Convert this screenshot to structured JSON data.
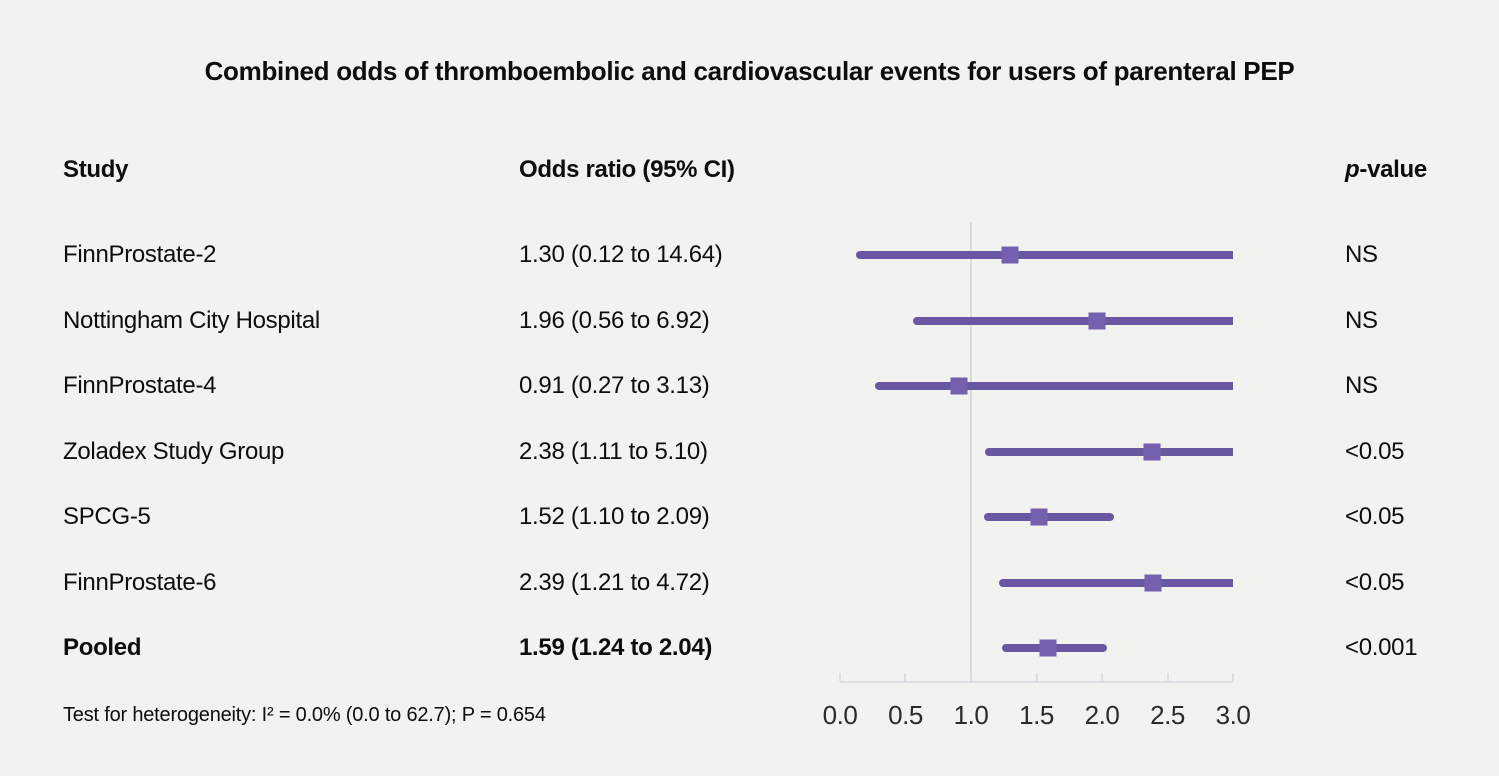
{
  "title": "Combined odds of thromboembolic and cardiovascular events for users of parenteral PEP",
  "columns": {
    "study": "Study",
    "odds_ratio": "Odds ratio (95% CI)",
    "p_prefix": "p",
    "p_suffix": "-value"
  },
  "footer": "Test for heterogeneity: I² = 0.0% (0.0 to 62.7); P = 0.654",
  "colors": {
    "background": "#f2f2f1",
    "ci_line": "#6a57a2",
    "marker": "#7460ae",
    "reference_line": "#d8dade",
    "axis": "#dcdee2",
    "text": "#0d0d0d"
  },
  "chart_data": {
    "type": "forest",
    "title": "Combined odds of thromboembolic and cardiovascular events for users of parenteral PEP",
    "xlabel": "",
    "ylabel": "",
    "axis": {
      "min": 0.0,
      "max": 3.0,
      "ticks": [
        0.0,
        0.5,
        1.0,
        1.5,
        2.0,
        2.5,
        3.0
      ],
      "tick_labels": [
        "0.0",
        "0.5",
        "1.0",
        "1.5",
        "2.0",
        "2.5",
        "3.0"
      ],
      "reference_line": 1.0,
      "grid": false
    },
    "rows": [
      {
        "study": "FinnProstate-2",
        "or_label": "1.30 (0.12 to 14.64)",
        "or": 1.3,
        "ci_low": 0.12,
        "ci_high": 14.64,
        "p": "NS",
        "emphasis": false
      },
      {
        "study": "Nottingham City Hospital",
        "or_label": "1.96 (0.56 to 6.92)",
        "or": 1.96,
        "ci_low": 0.56,
        "ci_high": 6.92,
        "p": "NS",
        "emphasis": false
      },
      {
        "study": "FinnProstate-4",
        "or_label": "0.91 (0.27 to 3.13)",
        "or": 0.91,
        "ci_low": 0.27,
        "ci_high": 3.13,
        "p": "NS",
        "emphasis": false
      },
      {
        "study": "Zoladex Study Group",
        "or_label": "2.38 (1.11 to 5.10)",
        "or": 2.38,
        "ci_low": 1.11,
        "ci_high": 5.1,
        "p": "<0.05",
        "emphasis": false
      },
      {
        "study": "SPCG-5",
        "or_label": "1.52 (1.10 to 2.09)",
        "or": 1.52,
        "ci_low": 1.1,
        "ci_high": 2.09,
        "p": "<0.05",
        "emphasis": false
      },
      {
        "study": "FinnProstate-6",
        "or_label": "2.39 (1.21 to 4.72)",
        "or": 2.39,
        "ci_low": 1.21,
        "ci_high": 4.72,
        "p": "<0.05",
        "emphasis": false
      },
      {
        "study": "Pooled",
        "or_label": "1.59 (1.24 to 2.04)",
        "or": 1.59,
        "ci_low": 1.24,
        "ci_high": 2.04,
        "p": "<0.001",
        "emphasis": true
      }
    ]
  }
}
